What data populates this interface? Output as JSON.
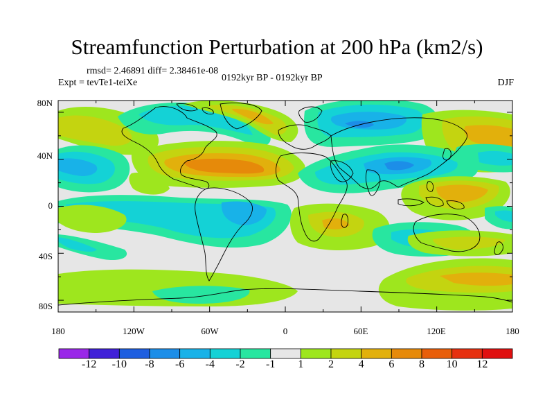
{
  "title": "Streamfunction Perturbation at 200 hPa (km2/s)",
  "stats": "rmsd= 2.46891 diff= 2.38461e-08",
  "experiment": "Expt = tevTe1-teiXe",
  "period": "0192kyr BP - 0192kyr BP",
  "season": "DJF",
  "lat_ticks": [
    "80N",
    "40N",
    "0",
    "40S",
    "80S"
  ],
  "lon_ticks": [
    "180",
    "120W",
    "60W",
    "0",
    "60E",
    "120E",
    "180"
  ],
  "colorbar": {
    "labels": [
      "-12",
      "-10",
      "-8",
      "-6",
      "-4",
      "-2",
      "-1",
      "1",
      "2",
      "4",
      "6",
      "8",
      "10",
      "12"
    ],
    "colors": [
      "#9a28e8",
      "#4020d8",
      "#1e5ee0",
      "#1c8ee8",
      "#18b2e8",
      "#14d2d6",
      "#28e6a0",
      "#e6e6e6",
      "#9ee61e",
      "#c4d410",
      "#e2b00c",
      "#e68a0a",
      "#e85e0a",
      "#e63010",
      "#e01010"
    ]
  },
  "field_colors": {
    "neutral": "#e6e6e6",
    "pos1": "#9ee61e",
    "pos2": "#c4d410",
    "pos3": "#e2b00c",
    "pos4": "#e68a0a",
    "neg1": "#28e6a0",
    "neg2": "#14d2d6",
    "neg3": "#18b2e8",
    "neg4": "#1c8ee8"
  }
}
